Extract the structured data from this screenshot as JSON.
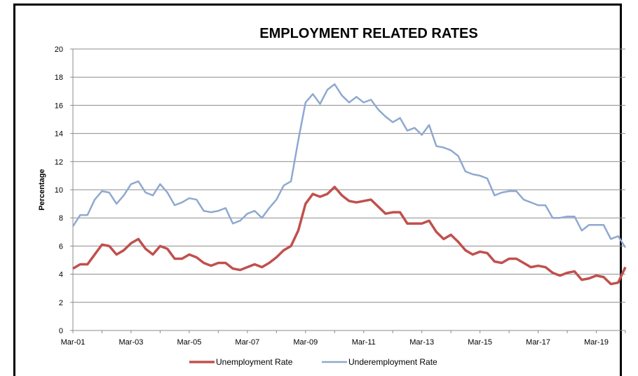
{
  "chart_data": {
    "type": "line",
    "title": "EMPLOYMENT RELATED RATES",
    "xlabel": "",
    "ylabel": "Percentage",
    "ylim": [
      0,
      20
    ],
    "yticks": [
      0,
      2,
      4,
      6,
      8,
      10,
      12,
      14,
      16,
      18,
      20
    ],
    "xtick_labels": [
      "Mar-01",
      "Mar-03",
      "Mar-05",
      "Mar-07",
      "Mar-09",
      "Mar-11",
      "Mar-13",
      "Mar-15",
      "Mar-17",
      "Mar-19"
    ],
    "x_period": "quarterly, Mar-01 to Mar-20",
    "grid": "horizontal",
    "legend": "bottom",
    "colors": {
      "unemployment": "#C0504D",
      "underemployment": "#8EA9D0"
    },
    "series": [
      {
        "name": "Unemployment Rate",
        "values": [
          4.4,
          4.7,
          4.7,
          5.4,
          6.1,
          6.0,
          5.4,
          5.7,
          6.2,
          6.5,
          5.8,
          5.4,
          6.0,
          5.8,
          5.1,
          5.1,
          5.4,
          5.2,
          4.8,
          4.6,
          4.8,
          4.8,
          4.4,
          4.3,
          4.5,
          4.7,
          4.5,
          4.8,
          5.2,
          5.7,
          6.0,
          7.1,
          9.0,
          9.7,
          9.5,
          9.7,
          10.2,
          9.6,
          9.2,
          9.1,
          9.2,
          9.3,
          8.8,
          8.3,
          8.4,
          8.4,
          7.6,
          7.6,
          7.6,
          7.8,
          7.0,
          6.5,
          6.8,
          6.3,
          5.7,
          5.4,
          5.6,
          5.5,
          4.9,
          4.8,
          5.1,
          5.1,
          4.8,
          4.5,
          4.6,
          4.5,
          4.1,
          3.9,
          4.1,
          4.2,
          3.6,
          3.7,
          3.9,
          3.8,
          3.3,
          3.4,
          4.5
        ]
      },
      {
        "name": "Underemployment Rate",
        "values": [
          7.4,
          8.2,
          8.2,
          9.3,
          9.9,
          9.8,
          9.0,
          9.6,
          10.4,
          10.6,
          9.8,
          9.6,
          10.4,
          9.8,
          8.9,
          9.1,
          9.4,
          9.3,
          8.5,
          8.4,
          8.5,
          8.7,
          7.6,
          7.8,
          8.3,
          8.5,
          8.0,
          8.7,
          9.3,
          10.3,
          10.6,
          13.5,
          16.2,
          16.8,
          16.1,
          17.1,
          17.5,
          16.7,
          16.2,
          16.6,
          16.2,
          16.4,
          15.7,
          15.2,
          14.8,
          15.1,
          14.2,
          14.4,
          13.9,
          14.6,
          13.1,
          13.0,
          12.8,
          12.4,
          11.3,
          11.1,
          11.0,
          10.8,
          9.6,
          9.8,
          9.9,
          9.9,
          9.3,
          9.1,
          8.9,
          8.9,
          8.0,
          8.0,
          8.1,
          8.1,
          7.1,
          7.5,
          7.5,
          7.5,
          6.5,
          6.7,
          5.9
        ]
      }
    ]
  }
}
